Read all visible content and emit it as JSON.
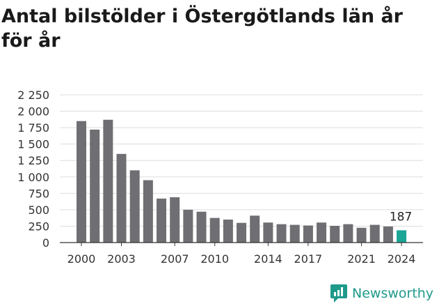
{
  "title": "Antal bilstölder i Östergötlands län år för år",
  "brand": {
    "name": "Newsworthy",
    "icon": "chart-logo-icon",
    "color": "#1f9a8a"
  },
  "chart_data": {
    "type": "bar",
    "title": "Antal bilstölder i Östergötlands län år för år",
    "xlabel": "",
    "ylabel": "",
    "categories": [
      "2000",
      "2001",
      "2002",
      "2003",
      "2004",
      "2005",
      "2006",
      "2007",
      "2008",
      "2009",
      "2010",
      "2011",
      "2012",
      "2013",
      "2014",
      "2015",
      "2016",
      "2017",
      "2018",
      "2019",
      "2020",
      "2021",
      "2022",
      "2023",
      "2024"
    ],
    "values": [
      1850,
      1720,
      1870,
      1350,
      1100,
      950,
      670,
      690,
      500,
      470,
      375,
      350,
      300,
      410,
      305,
      280,
      270,
      260,
      305,
      255,
      280,
      225,
      270,
      245,
      187
    ],
    "ylim": [
      0,
      2250
    ],
    "yticks": [
      0,
      250,
      500,
      750,
      1000,
      1250,
      1500,
      1750,
      2000,
      2250
    ],
    "ytick_labels": [
      "0",
      "250",
      "500",
      "750",
      "1 000",
      "1 250",
      "1 500",
      "1 750",
      "2 000",
      "2 250"
    ],
    "xtick_labels": [
      "2000",
      "2003",
      "2007",
      "2010",
      "2014",
      "2017",
      "2021",
      "2024"
    ],
    "highlight_label": "187",
    "grid": true,
    "colors": {
      "bar": "#6f6e72",
      "highlight": "#1aa595",
      "grid": "#dddddd"
    }
  }
}
